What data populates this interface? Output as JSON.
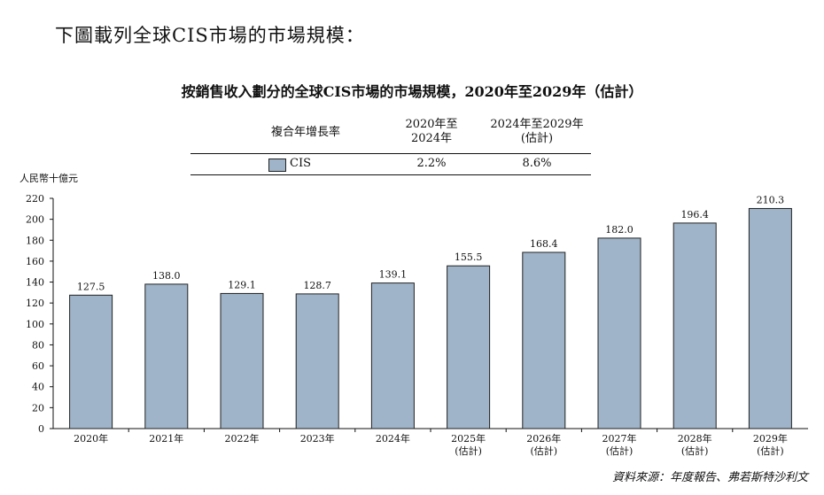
{
  "intro_text": "下圖載列全球CIS市場的市場規模：",
  "chart_title": "按銷售收入劃分的全球CIS市場的市場規模，2020年至2029年（估計）",
  "cagr_table": {
    "header_label": "複合年增長率",
    "col1_header_line1": "2020年至",
    "col1_header_line2": "2024年",
    "col2_header_line1": "2024年至2029年",
    "col2_header_line2": "(估計)",
    "row_label": "CIS",
    "row_col1": "2.2%",
    "row_col2": "8.6%"
  },
  "y_unit_label": "人民幣十億元",
  "source_text": "資料來源：年度報告、弗若斯特沙利文",
  "colors": {
    "bar": "#9fb4c8",
    "bar_stroke": "#222222"
  },
  "chart_data": {
    "type": "bar",
    "categories": [
      "2020年",
      "2021年",
      "2022年",
      "2023年",
      "2024年",
      "2025年",
      "2026年",
      "2027年",
      "2028年",
      "2029年"
    ],
    "category_sublabels": [
      "",
      "",
      "",
      "",
      "",
      "(估計)",
      "(估計)",
      "(估計)",
      "(估計)",
      "(估計)"
    ],
    "series": [
      {
        "name": "CIS",
        "values": [
          127.5,
          138.0,
          129.1,
          128.7,
          139.1,
          155.5,
          168.4,
          182.0,
          196.4,
          210.3
        ]
      }
    ],
    "data_labels": [
      "127.5",
      "138.0",
      "129.1",
      "128.7",
      "139.1",
      "155.5",
      "168.4",
      "182.0",
      "196.4",
      "210.3"
    ],
    "yticks": [
      "0",
      "20",
      "40",
      "60",
      "80",
      "100",
      "120",
      "140",
      "160",
      "180",
      "200",
      "220"
    ],
    "ylim": [
      0,
      220
    ],
    "ylabel": "人民幣十億元",
    "grid": false
  }
}
